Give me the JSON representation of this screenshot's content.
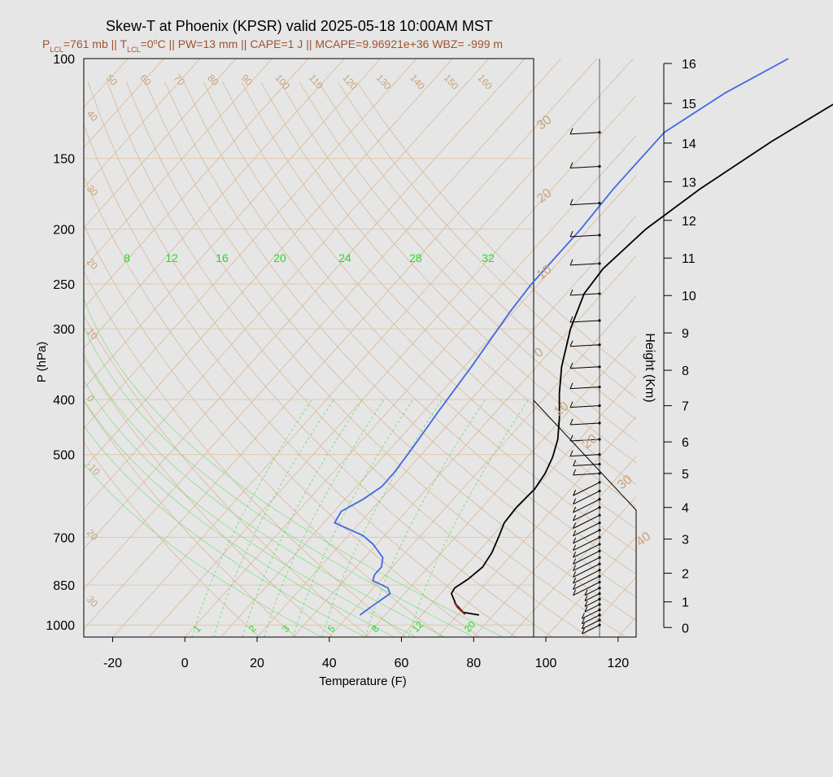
{
  "chart_data": {
    "type": "line",
    "chart_kind": "skew-t log-p sounding",
    "title": "Skew-T at Phoenix (KPSR) valid 2025-05-18 10:00AM MST",
    "subtitle": {
      "p_lcl_value": "=761 mb || T",
      "t_lcl_value": "=0",
      "rest": "C || PW=13 mm || CAPE=1 J || MCAPE=9.96921e+36 WBZ= -999 m",
      "lcl_sub": "LCL",
      "deg": "o",
      "p": "P",
      "t": "T"
    },
    "xlabel": "Temperature (F)",
    "ylabel": "P (hPa)",
    "height_label": "Height (Km)",
    "xlim": [
      -28,
      125
    ],
    "ylim": [
      1050,
      100
    ],
    "x_ticks": [
      -20,
      0,
      20,
      40,
      60,
      80,
      100,
      120
    ],
    "p_ticks": [
      100,
      150,
      200,
      250,
      300,
      400,
      500,
      700,
      850,
      1000
    ],
    "height_ticks": [
      {
        "km": 0,
        "p": 1010
      },
      {
        "km": 1,
        "p": 910
      },
      {
        "km": 2,
        "p": 810
      },
      {
        "km": 3,
        "p": 705
      },
      {
        "km": 4,
        "p": 620
      },
      {
        "km": 5,
        "p": 540
      },
      {
        "km": 6,
        "p": 475
      },
      {
        "km": 7,
        "p": 410
      },
      {
        "km": 8,
        "p": 355
      },
      {
        "km": 9,
        "p": 305
      },
      {
        "km": 10,
        "p": 262
      },
      {
        "km": 11,
        "p": 225
      },
      {
        "km": 12,
        "p": 193
      },
      {
        "km": 13,
        "p": 165
      },
      {
        "km": 14,
        "p": 141
      },
      {
        "km": 15,
        "p": 120
      },
      {
        "km": 16,
        "p": 102
      }
    ],
    "isotherm_labels": [
      "50",
      "60",
      "70",
      "80",
      "90",
      "100",
      "110",
      "120",
      "130",
      "140",
      "150",
      "160"
    ],
    "dry_adiabat_labels": [
      "40",
      "30",
      "20",
      "10",
      "0",
      "-10",
      "20",
      "30"
    ],
    "mixing_ratio_top_labels": [
      "8",
      "12",
      "16",
      "20",
      "24",
      "28",
      "32"
    ],
    "mixing_ratio_bottom_labels": [
      "1",
      "2",
      "3",
      "5",
      "8",
      "12",
      "20"
    ],
    "right_axis_labels": [
      "30",
      "20",
      "10",
      "0",
      "10",
      "20",
      "30",
      "40"
    ],
    "series": [
      {
        "name": "temperature",
        "color": "#000000",
        "points": [
          [
            76,
            960
          ],
          [
            71,
            950
          ],
          [
            67,
            920
          ],
          [
            63,
            880
          ],
          [
            62.5,
            860
          ],
          [
            64,
            830
          ],
          [
            65,
            790
          ],
          [
            64,
            745
          ],
          [
            62,
            700
          ],
          [
            60,
            660
          ],
          [
            59.5,
            620
          ],
          [
            60,
            575
          ],
          [
            59,
            540
          ],
          [
            57,
            505
          ],
          [
            54,
            470
          ],
          [
            49,
            430
          ],
          [
            43,
            390
          ],
          [
            37,
            350
          ],
          [
            30,
            300
          ],
          [
            25,
            260
          ],
          [
            24,
            235
          ],
          [
            26,
            200
          ],
          [
            31,
            170
          ],
          [
            39,
            140
          ],
          [
            47,
            120
          ],
          [
            58,
            100
          ]
        ]
      },
      {
        "name": "parcel",
        "color": "#b22222",
        "points": [
          [
            72,
            958
          ],
          [
            68,
            930
          ],
          [
            66,
            912
          ]
        ]
      },
      {
        "name": "dewpoint",
        "color": "#4169e1",
        "points": [
          [
            43,
            960
          ],
          [
            44,
            930
          ],
          [
            46,
            880
          ],
          [
            44,
            860
          ],
          [
            38,
            835
          ],
          [
            37,
            815
          ],
          [
            37,
            790
          ],
          [
            35,
            760
          ],
          [
            29,
            720
          ],
          [
            24,
            695
          ],
          [
            13,
            660
          ],
          [
            12,
            630
          ],
          [
            15,
            600
          ],
          [
            17,
            570
          ],
          [
            17,
            540
          ],
          [
            16,
            490
          ],
          [
            14,
            420
          ],
          [
            12,
            350
          ],
          [
            9,
            280
          ],
          [
            8,
            250
          ],
          [
            8,
            200
          ],
          [
            7,
            170
          ],
          [
            7,
            135
          ],
          [
            14,
            115
          ],
          [
            23,
            100
          ]
        ]
      }
    ],
    "wind_profile": {
      "pressures": [
        1000,
        980,
        960,
        940,
        920,
        900,
        880,
        860,
        840,
        820,
        800,
        780,
        760,
        740,
        720,
        700,
        680,
        660,
        640,
        620,
        600,
        580,
        560,
        540,
        520,
        500,
        470,
        440,
        410,
        380,
        350,
        320,
        290,
        260,
        230,
        205,
        180,
        155,
        135
      ],
      "lengths": [
        0.6,
        0.6,
        0.6,
        0.6,
        0.5,
        0.5,
        0.5,
        0.5,
        0.9,
        0.9,
        0.9,
        0.9,
        0.9,
        0.9,
        0.9,
        0.9,
        0.9,
        0.9,
        0.9,
        0.9,
        0.9,
        0.9,
        0.9,
        0.9,
        0.9,
        1,
        1,
        1,
        1,
        1,
        1,
        1,
        1,
        1,
        1,
        1,
        1,
        1,
        1
      ]
    }
  }
}
